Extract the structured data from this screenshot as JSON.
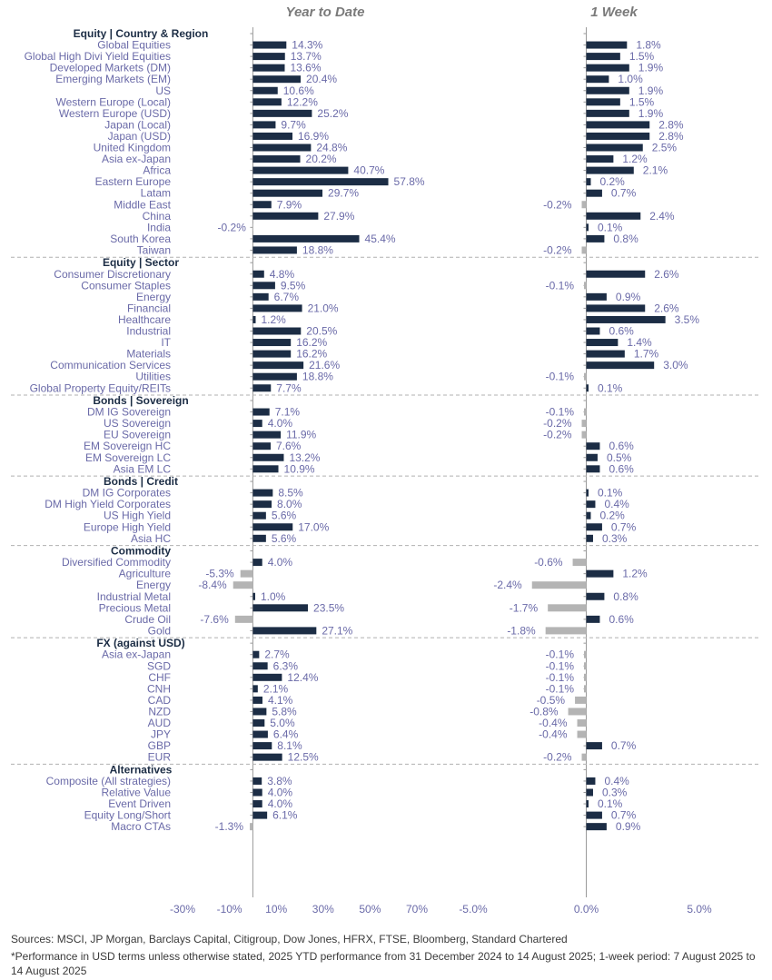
{
  "chart_data": {
    "type": "bar",
    "orientation": "horizontal",
    "panels": [
      {
        "title": "Year to Date",
        "unit": "%",
        "xlim": [
          -30,
          70
        ],
        "ticks": [
          -30,
          -10,
          10,
          30,
          50,
          70
        ],
        "tick_labels": [
          "-30%",
          "-10%",
          "10%",
          "30%",
          "50%",
          "70%"
        ]
      },
      {
        "title": "1 Week",
        "unit": "%",
        "xlim": [
          -5,
          5
        ],
        "ticks": [
          -5,
          0,
          5
        ],
        "tick_labels": [
          "-5.0%",
          "0.0%",
          "5.0%"
        ]
      }
    ],
    "groups": [
      {
        "name": "Equity | Country & Region",
        "items": [
          {
            "label": "Global Equities",
            "ytd": 14.3,
            "wk": 1.8
          },
          {
            "label": "Global High Divi Yield Equities",
            "ytd": 13.7,
            "wk": 1.5
          },
          {
            "label": "Developed Markets (DM)",
            "ytd": 13.6,
            "wk": 1.9
          },
          {
            "label": "Emerging Markets (EM)",
            "ytd": 20.4,
            "wk": 1.0
          },
          {
            "label": "US",
            "ytd": 10.6,
            "wk": 1.9
          },
          {
            "label": "Western Europe (Local)",
            "ytd": 12.2,
            "wk": 1.5
          },
          {
            "label": "Western Europe (USD)",
            "ytd": 25.2,
            "wk": 1.9
          },
          {
            "label": "Japan (Local)",
            "ytd": 9.7,
            "wk": 2.8
          },
          {
            "label": "Japan (USD)",
            "ytd": 16.9,
            "wk": 2.8
          },
          {
            "label": "United Kingdom",
            "ytd": 24.8,
            "wk": 2.5
          },
          {
            "label": "Asia ex-Japan",
            "ytd": 20.2,
            "wk": 1.2
          },
          {
            "label": "Africa",
            "ytd": 40.7,
            "wk": 2.1
          },
          {
            "label": "Eastern Europe",
            "ytd": 57.8,
            "wk": 0.2
          },
          {
            "label": "Latam",
            "ytd": 29.7,
            "wk": 0.7
          },
          {
            "label": "Middle East",
            "ytd": 7.9,
            "wk": -0.2
          },
          {
            "label": "China",
            "ytd": 27.9,
            "wk": 2.4
          },
          {
            "label": "India",
            "ytd": -0.2,
            "wk": 0.1
          },
          {
            "label": "South Korea",
            "ytd": 45.4,
            "wk": 0.8
          },
          {
            "label": "Taiwan",
            "ytd": 18.8,
            "wk": -0.2
          }
        ]
      },
      {
        "name": "Equity | Sector",
        "items": [
          {
            "label": "Consumer Discretionary",
            "ytd": 4.8,
            "wk": 2.6
          },
          {
            "label": "Consumer Staples",
            "ytd": 9.5,
            "wk": -0.1
          },
          {
            "label": "Energy",
            "ytd": 6.7,
            "wk": 0.9
          },
          {
            "label": "Financial",
            "ytd": 21.0,
            "wk": 2.6
          },
          {
            "label": "Healthcare",
            "ytd": 1.2,
            "wk": 3.5
          },
          {
            "label": "Industrial",
            "ytd": 20.5,
            "wk": 0.6
          },
          {
            "label": "IT",
            "ytd": 16.2,
            "wk": 1.4
          },
          {
            "label": "Materials",
            "ytd": 16.2,
            "wk": 1.7
          },
          {
            "label": "Communication Services",
            "ytd": 21.6,
            "wk": 3.0
          },
          {
            "label": "Utilities",
            "ytd": 18.8,
            "wk": -0.1
          },
          {
            "label": "Global Property Equity/REITs",
            "ytd": 7.7,
            "wk": 0.1
          }
        ]
      },
      {
        "name": "Bonds | Sovereign",
        "items": [
          {
            "label": "DM IG Sovereign",
            "ytd": 7.1,
            "wk": -0.1
          },
          {
            "label": "US Sovereign",
            "ytd": 4.0,
            "wk": -0.2
          },
          {
            "label": "EU Sovereign",
            "ytd": 11.9,
            "wk": -0.2
          },
          {
            "label": "EM Sovereign HC",
            "ytd": 7.6,
            "wk": 0.6
          },
          {
            "label": "EM Sovereign LC",
            "ytd": 13.2,
            "wk": 0.5
          },
          {
            "label": "Asia EM LC",
            "ytd": 10.9,
            "wk": 0.6
          }
        ]
      },
      {
        "name": "Bonds | Credit",
        "items": [
          {
            "label": "DM IG Corporates",
            "ytd": 8.5,
            "wk": 0.1
          },
          {
            "label": "DM High Yield Corporates",
            "ytd": 8.0,
            "wk": 0.4
          },
          {
            "label": "US High Yield",
            "ytd": 5.6,
            "wk": 0.2
          },
          {
            "label": "Europe High Yield",
            "ytd": 17.0,
            "wk": 0.7
          },
          {
            "label": "Asia HC",
            "ytd": 5.6,
            "wk": 0.3
          }
        ]
      },
      {
        "name": "Commodity",
        "items": [
          {
            "label": "Diversified Commodity",
            "ytd": 4.0,
            "wk": -0.6
          },
          {
            "label": "Agriculture",
            "ytd": -5.3,
            "wk": 1.2
          },
          {
            "label": "Energy",
            "ytd": -8.4,
            "wk": -2.4
          },
          {
            "label": "Industrial Metal",
            "ytd": 1.0,
            "wk": 0.8
          },
          {
            "label": "Precious Metal",
            "ytd": 23.5,
            "wk": -1.7
          },
          {
            "label": "Crude Oil",
            "ytd": -7.6,
            "wk": 0.6
          },
          {
            "label": "Gold",
            "ytd": 27.1,
            "wk": -1.8
          }
        ]
      },
      {
        "name": "FX (against USD)",
        "items": [
          {
            "label": "Asia ex-Japan",
            "ytd": 2.7,
            "wk": -0.1
          },
          {
            "label": "SGD",
            "ytd": 6.3,
            "wk": -0.1
          },
          {
            "label": "CHF",
            "ytd": 12.4,
            "wk": -0.1
          },
          {
            "label": "CNH",
            "ytd": 2.1,
            "wk": -0.1
          },
          {
            "label": "CAD",
            "ytd": 4.1,
            "wk": -0.5
          },
          {
            "label": "NZD",
            "ytd": 5.8,
            "wk": -0.8
          },
          {
            "label": "AUD",
            "ytd": 5.0,
            "wk": -0.4
          },
          {
            "label": "JPY",
            "ytd": 6.4,
            "wk": -0.4
          },
          {
            "label": "GBP",
            "ytd": 8.1,
            "wk": 0.7
          },
          {
            "label": "EUR",
            "ytd": 12.5,
            "wk": -0.2
          }
        ]
      },
      {
        "name": "Alternatives",
        "items": [
          {
            "label": "Composite (All strategies)",
            "ytd": 3.8,
            "wk": 0.4
          },
          {
            "label": "Relative Value",
            "ytd": 4.0,
            "wk": 0.3
          },
          {
            "label": "Event Driven",
            "ytd": 4.0,
            "wk": 0.1
          },
          {
            "label": "Equity Long/Short",
            "ytd": 6.1,
            "wk": 0.7
          },
          {
            "label": "Macro CTAs",
            "ytd": -1.3,
            "wk": 0.9
          }
        ]
      }
    ],
    "colors": {
      "positive": "#1c2d45",
      "negative": "#b4b4b4",
      "value_text": "#6a6aa8",
      "label_text": "#6a6aa8",
      "header_text": "#1c2d45",
      "axis": "#9a9a9a",
      "separator": "#b0b0b0",
      "title_text": "#7a7a7a"
    }
  },
  "sources": "Sources: MSCI, JP Morgan, Barclays Capital, Citigroup, Dow Jones, HFRX, FTSE, Bloomberg, Standard Chartered",
  "footnote": "*Performance in USD terms unless otherwise stated, 2025 YTD performance from 31 December 2024 to 14 August 2025; 1-week period: 7 August 2025 to 14 August 2025"
}
